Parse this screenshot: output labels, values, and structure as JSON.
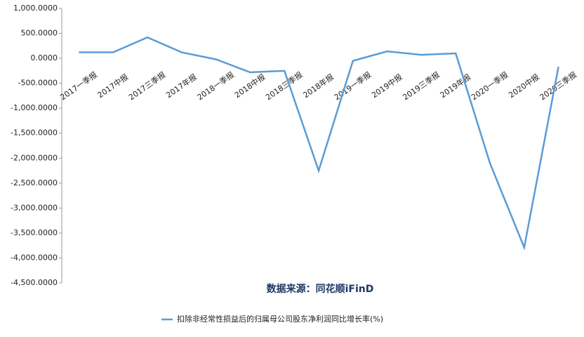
{
  "chart_data": {
    "type": "line",
    "categories": [
      "2017一季报",
      "2017中报",
      "2017三季报",
      "2017年报",
      "2018一季报",
      "2018中报",
      "2018三季报",
      "2018年报",
      "2019一季报",
      "2019中报",
      "2019三季报",
      "2019年报",
      "2020一季报",
      "2020中报",
      "2020三季报"
    ],
    "series": [
      {
        "name": "扣除非经常性损益后的归属母公司股东净利润同比增长率(%)",
        "color": "#5b9bd5",
        "values": [
          120,
          120,
          420,
          120,
          -20,
          -280,
          -250,
          -2250,
          -50,
          140,
          70,
          100,
          -2100,
          -3790,
          -170
        ]
      }
    ],
    "ylim": [
      -4500,
      1000
    ],
    "yticks": [
      {
        "value": 1000,
        "label": "1,000.0000"
      },
      {
        "value": 500,
        "label": "500.0000"
      },
      {
        "value": 0,
        "label": "0.0000"
      },
      {
        "value": -500,
        "label": "-500.0000"
      },
      {
        "value": -1000,
        "label": "-1,000.0000"
      },
      {
        "value": -1500,
        "label": "-1,500.0000"
      },
      {
        "value": -2000,
        "label": "-2,000.0000"
      },
      {
        "value": -2500,
        "label": "-2,500.0000"
      },
      {
        "value": -3000,
        "label": "-3,000.0000"
      },
      {
        "value": -3500,
        "label": "-3,500.0000"
      },
      {
        "value": -4000,
        "label": "-4,000.0000"
      },
      {
        "value": -4500,
        "label": "-4,500.0000"
      }
    ],
    "annotation": "数据来源：同花顺iFinD",
    "legend": "bottom"
  }
}
